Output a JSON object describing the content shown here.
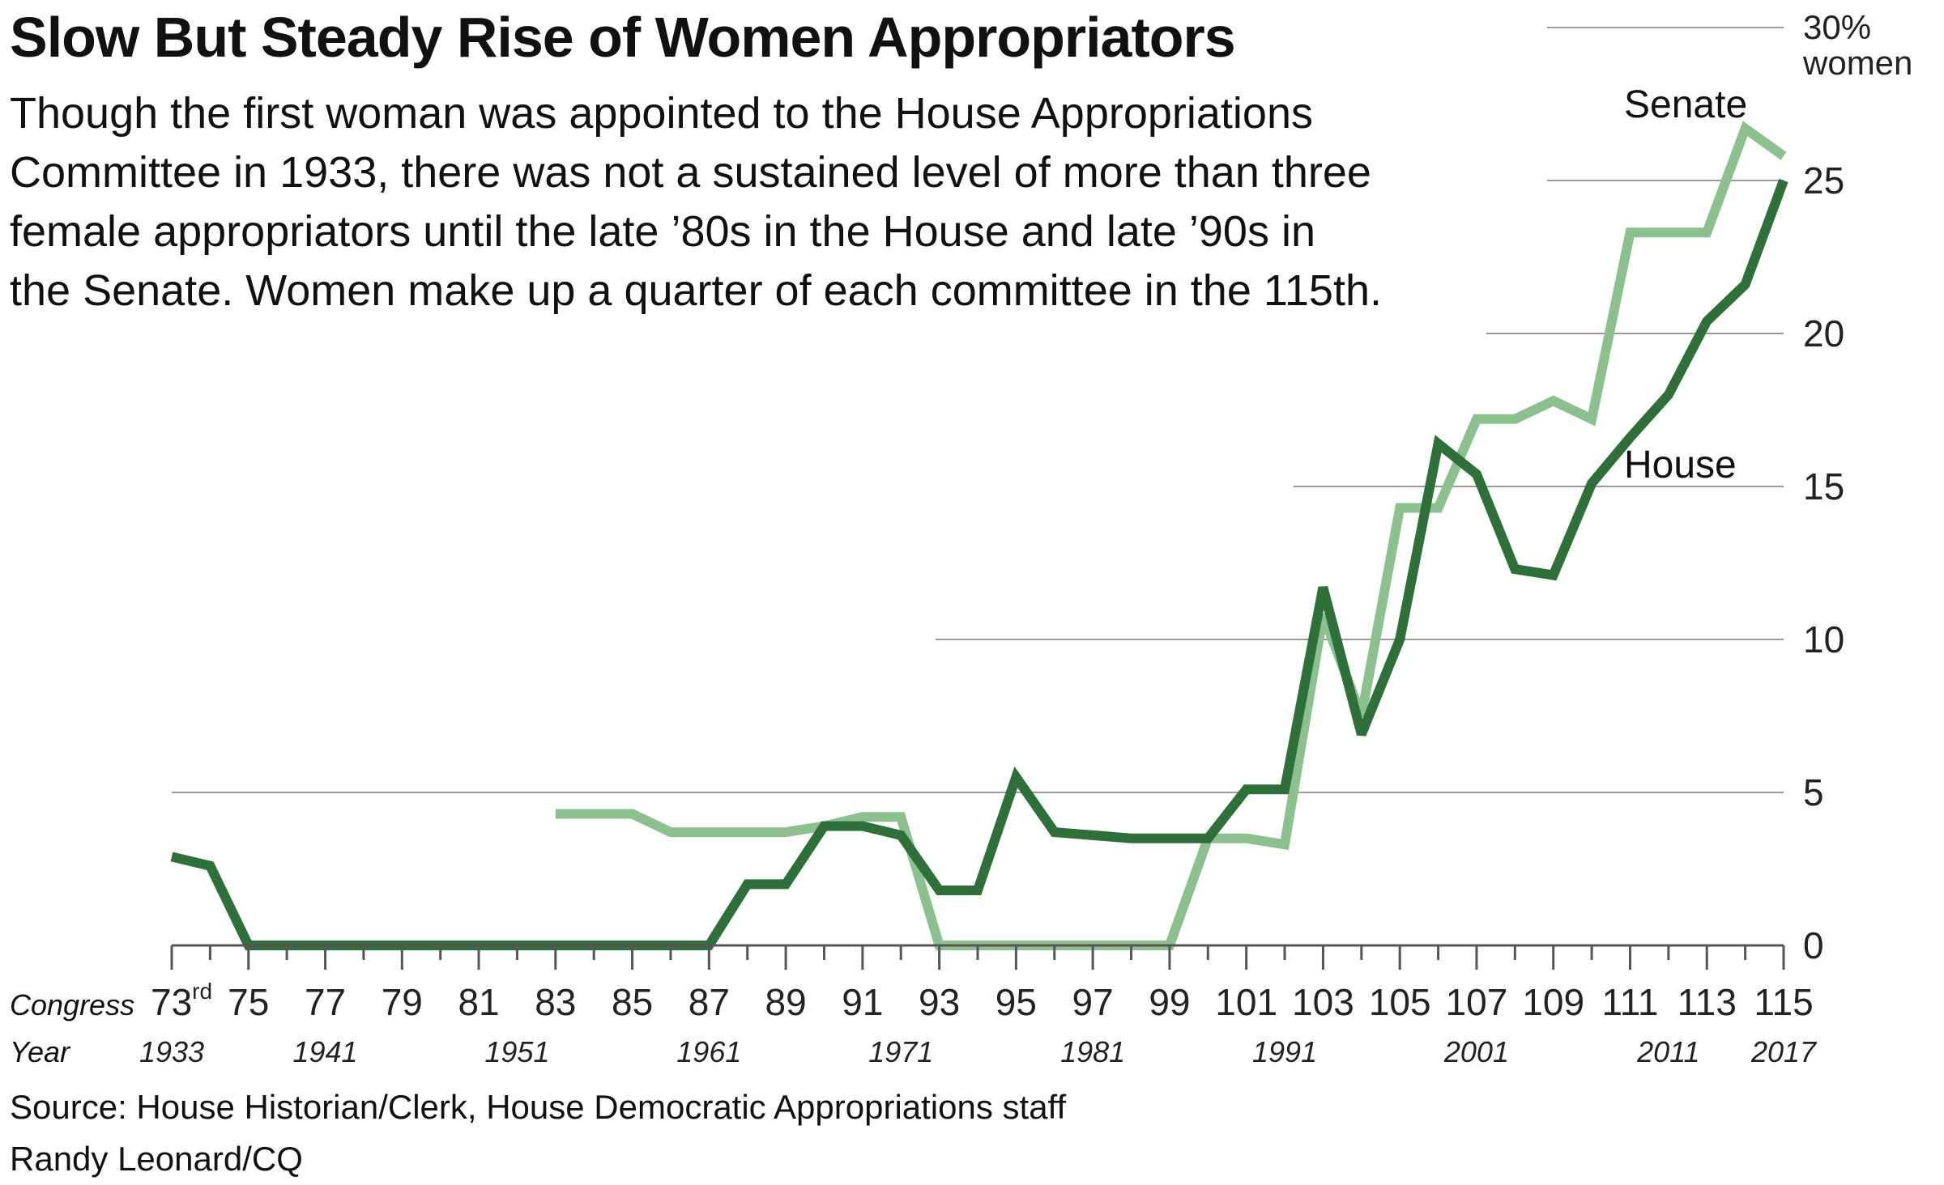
{
  "header": {
    "title": "Slow But Steady Rise of Women Appropriators",
    "description_lines": [
      "Though the first woman was appointed to the House Appropriations",
      "Committee in 1933, there was not a sustained level of more than three",
      "female appropriators until the late ’80s in the House and late ’90s in",
      "the Senate. Women make up a quarter of each committee in the 115th."
    ]
  },
  "footer": {
    "source": "Source: House Historian/Clerk, House Democratic Appropriations staff",
    "credit": "Randy Leonard/CQ"
  },
  "chart_data": {
    "type": "line",
    "title": "Slow But Steady Rise of Women Appropriators",
    "ylabel_top": "30%",
    "ylabel_unit": "women",
    "ylim": [
      0,
      30
    ],
    "y_ticks": [
      0,
      5,
      10,
      15,
      20,
      25
    ],
    "xlim": [
      73,
      115
    ],
    "x_tick_row_label": "Congress",
    "year_row_label": "Year",
    "x_tick_labels": [
      {
        "congress": 73,
        "label": "73",
        "sup": "rd"
      },
      {
        "congress": 75,
        "label": "75"
      },
      {
        "congress": 77,
        "label": "77"
      },
      {
        "congress": 79,
        "label": "79"
      },
      {
        "congress": 81,
        "label": "81"
      },
      {
        "congress": 83,
        "label": "83"
      },
      {
        "congress": 85,
        "label": "85"
      },
      {
        "congress": 87,
        "label": "87"
      },
      {
        "congress": 89,
        "label": "89"
      },
      {
        "congress": 91,
        "label": "91"
      },
      {
        "congress": 93,
        "label": "93"
      },
      {
        "congress": 95,
        "label": "95"
      },
      {
        "congress": 97,
        "label": "97"
      },
      {
        "congress": 99,
        "label": "99"
      },
      {
        "congress": 101,
        "label": "101"
      },
      {
        "congress": 103,
        "label": "103"
      },
      {
        "congress": 105,
        "label": "105"
      },
      {
        "congress": 107,
        "label": "107"
      },
      {
        "congress": 109,
        "label": "109"
      },
      {
        "congress": 111,
        "label": "111"
      },
      {
        "congress": 113,
        "label": "113"
      },
      {
        "congress": 115,
        "label": "115"
      }
    ],
    "year_labels": [
      {
        "congress": 73,
        "label": "1933"
      },
      {
        "congress": 77,
        "label": "1941"
      },
      {
        "congress": 82,
        "label": "1951"
      },
      {
        "congress": 87,
        "label": "1961"
      },
      {
        "congress": 92,
        "label": "1971"
      },
      {
        "congress": 97,
        "label": "1981"
      },
      {
        "congress": 102,
        "label": "1991"
      },
      {
        "congress": 107,
        "label": "2001"
      },
      {
        "congress": 112,
        "label": "2011"
      },
      {
        "congress": 115,
        "label": "2017"
      }
    ],
    "series": [
      {
        "name": "Senate",
        "color": "#8dc08f",
        "x": [
          83,
          84,
          85,
          86,
          87,
          88,
          89,
          90,
          91,
          92,
          93,
          94,
          95,
          96,
          97,
          98,
          99,
          100,
          101,
          102,
          103,
          104,
          105,
          106,
          107,
          108,
          109,
          110,
          111,
          112,
          113,
          114,
          115
        ],
        "y": [
          4.3,
          4.3,
          4.3,
          3.7,
          3.7,
          3.7,
          3.7,
          3.9,
          4.2,
          4.2,
          0,
          0,
          0,
          0,
          0,
          0,
          0,
          3.5,
          3.5,
          3.3,
          10.8,
          7.5,
          14.3,
          14.3,
          17.2,
          17.2,
          17.8,
          17.2,
          23.3,
          23.3,
          23.3,
          26.7,
          25.8
        ]
      },
      {
        "name": "House",
        "color": "#2e6f3a",
        "x": [
          73,
          74,
          75,
          76,
          77,
          78,
          79,
          80,
          81,
          82,
          83,
          84,
          85,
          86,
          87,
          88,
          89,
          90,
          91,
          92,
          93,
          94,
          95,
          96,
          97,
          98,
          99,
          100,
          101,
          102,
          103,
          104,
          105,
          106,
          107,
          108,
          109,
          110,
          111,
          112,
          113,
          114,
          115
        ],
        "y": [
          2.9,
          2.6,
          0,
          0,
          0,
          0,
          0,
          0,
          0,
          0,
          0,
          0,
          0,
          0,
          0,
          2.0,
          2.0,
          3.9,
          3.9,
          3.6,
          1.8,
          1.8,
          5.5,
          3.7,
          3.6,
          3.5,
          3.5,
          3.5,
          5.1,
          5.1,
          11.7,
          6.9,
          10.0,
          16.4,
          15.4,
          12.3,
          12.1,
          15.1,
          16.6,
          18.0,
          20.4,
          21.6,
          25.0
        ]
      }
    ]
  }
}
